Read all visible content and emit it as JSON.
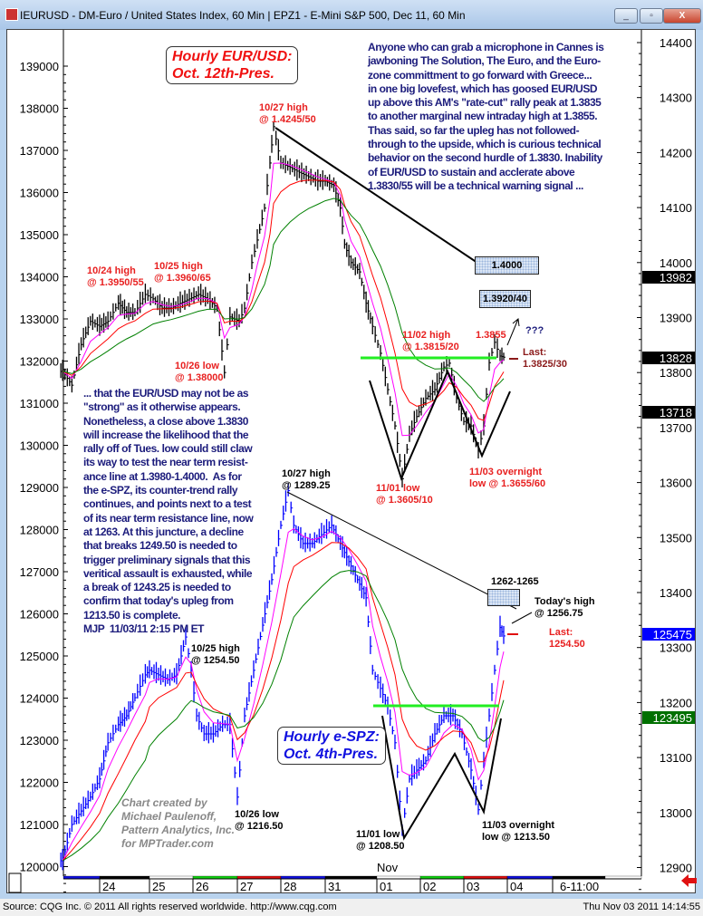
{
  "window": {
    "title": "IEURUSD - DM-Euro / United States Index, 60 Min  |  EPZ1 - E-Mini S&P 500, Dec 11, 60 Min",
    "buttons": {
      "minimize": "_",
      "maximize": "▫",
      "close": "X"
    }
  },
  "status": {
    "source": "Source: CQG Inc. © 2011 All rights reserved worldwide. http://www.cqg.com",
    "datetime": "Thu Nov 03 2011 14:14:55"
  },
  "chart_data": {
    "type": "bar",
    "x_ticks": [
      "24",
      "25",
      "26",
      "27",
      "28",
      "31",
      "01",
      "02",
      "03",
      "04",
      "6-11:00"
    ],
    "month_label": "Nov",
    "left_axis": {
      "ticks": [
        139000,
        138000,
        137000,
        136000,
        135000,
        134000,
        133000,
        132000,
        131000,
        130000,
        129000,
        128000,
        127000,
        126000,
        125000,
        124000,
        123000,
        122000,
        121000,
        120000
      ],
      "range": [
        120000,
        139800
      ]
    },
    "right_axis": {
      "ticks": [
        14400,
        14300,
        14200,
        14100,
        14000,
        13900,
        13800,
        13700,
        13600,
        13500,
        13400,
        13300,
        13200,
        13100,
        13000,
        12900
      ],
      "range": [
        12900,
        14430
      ]
    },
    "price_tags": [
      {
        "value": "13982",
        "color": "#000000"
      },
      {
        "value": "13828",
        "color": "#000000"
      },
      {
        "value": "13718",
        "color": "#000000"
      },
      {
        "value": "125475",
        "color": "#0000ff"
      },
      {
        "value": "123495",
        "color": "#007000"
      }
    ],
    "series": [
      {
        "name": "IEURUSD",
        "axis": "right",
        "color": "#000000",
        "points": [
          [
            "10/23 04:00",
            13802
          ],
          [
            "10/23 09:00",
            13777
          ],
          [
            "10/23 14:00",
            13851
          ],
          [
            "10/23 19:00",
            13893
          ],
          [
            "10/24 00:00",
            13884
          ],
          [
            "10/24 04:00",
            13893
          ],
          [
            "10/24 09:00",
            13926
          ],
          [
            "10/24 13:00",
            13909
          ],
          [
            "10/24 17:00",
            13909
          ],
          [
            "10/24 22:00",
            13942
          ],
          [
            "10/25 02:00",
            13934
          ],
          [
            "10/25 07:00",
            13917
          ],
          [
            "10/25 12:00",
            13917
          ],
          [
            "10/25 17:00",
            13926
          ],
          [
            "10/25 22:00",
            13934
          ],
          [
            "10/26 03:00",
            13942
          ],
          [
            "10/26 08:00",
            13934
          ],
          [
            "10/26 13:00",
            13917
          ],
          [
            "10/26 17:00",
            13800
          ],
          [
            "10/26 20:00",
            13901
          ],
          [
            "10/27 01:00",
            13893
          ],
          [
            "10/27 04:00",
            13917
          ],
          [
            "10/27 08:00",
            14000
          ],
          [
            "10/27 11:00",
            14041
          ],
          [
            "10/27 15:00",
            14099
          ],
          [
            "10/27 18:00",
            14181
          ],
          [
            "10/27 20:00",
            14247
          ],
          [
            "10/28 00:00",
            14181
          ],
          [
            "10/28 05:00",
            14173
          ],
          [
            "10/28 10:00",
            14164
          ],
          [
            "10/28 15:00",
            14156
          ],
          [
            "10/28 20:00",
            14148
          ],
          [
            "10/31 00:00",
            14148
          ],
          [
            "10/31 04:00",
            14140
          ],
          [
            "10/31 07:00",
            14099
          ],
          [
            "10/31 09:00",
            14033
          ],
          [
            "10/31 12:00",
            14000
          ],
          [
            "10/31 16:00",
            13983
          ],
          [
            "10/31 19:00",
            13926
          ],
          [
            "10/31 22:00",
            13884
          ],
          [
            "11/01 02:00",
            13835
          ],
          [
            "11/01 06:00",
            13769
          ],
          [
            "11/01 10:00",
            13703
          ],
          [
            "11/01 14:00",
            13607
          ],
          [
            "11/01 18:00",
            13687
          ],
          [
            "11/01 22:00",
            13720
          ],
          [
            "11/02 03:00",
            13753
          ],
          [
            "11/02 08:00",
            13769
          ],
          [
            "11/02 13:00",
            13810
          ],
          [
            "11/02 16:00",
            13817
          ],
          [
            "11/02 20:00",
            13753
          ],
          [
            "11/03 00:00",
            13711
          ],
          [
            "11/03 04:00",
            13703
          ],
          [
            "11/03 08:00",
            13657
          ],
          [
            "11/03 11:00",
            13703
          ],
          [
            "11/03 14:00",
            13818
          ],
          [
            "11/03 17:00",
            13855
          ],
          [
            "11/03 20:00",
            13830
          ],
          [
            "11/03 22:00",
            13828
          ]
        ]
      },
      {
        "name": "EPZ1",
        "axis": "left",
        "color": "#0000ff",
        "points": [
          [
            "10/23 04:00",
            120140
          ],
          [
            "10/23 09:00",
            121000
          ],
          [
            "10/23 14:00",
            121320
          ],
          [
            "10/23 19:00",
            121650
          ],
          [
            "10/24 00:00",
            122080
          ],
          [
            "10/24 04:00",
            122940
          ],
          [
            "10/24 09:00",
            123370
          ],
          [
            "10/24 13:00",
            123580
          ],
          [
            "10/24 17:00",
            124010
          ],
          [
            "10/24 22:00",
            124550
          ],
          [
            "10/25 00:00",
            124660
          ],
          [
            "10/25 05:00",
            124550
          ],
          [
            "10/25 10:00",
            124440
          ],
          [
            "10/25 15:00",
            124550
          ],
          [
            "10/25 20:00",
            125450
          ],
          [
            "10/25 23:00",
            124660
          ],
          [
            "10/26 02:00",
            123580
          ],
          [
            "10/26 06:00",
            123150
          ],
          [
            "10/26 11:00",
            123150
          ],
          [
            "10/26 16:00",
            123370
          ],
          [
            "10/26 20:00",
            123370
          ],
          [
            "10/27 00:00",
            121650
          ],
          [
            "10/27 04:00",
            123580
          ],
          [
            "10/27 09:00",
            124660
          ],
          [
            "10/27 14:00",
            125730
          ],
          [
            "10/27 19:00",
            126810
          ],
          [
            "10/28 00:00",
            128100
          ],
          [
            "10/28 04:00",
            128925
          ],
          [
            "10/28 07:00",
            128100
          ],
          [
            "10/28 12:00",
            127670
          ],
          [
            "10/28 17:00",
            127670
          ],
          [
            "10/28 22:00",
            127880
          ],
          [
            "10/31 03:00",
            128100
          ],
          [
            "10/31 07:00",
            127670
          ],
          [
            "10/31 11:00",
            127240
          ],
          [
            "10/31 15:00",
            126810
          ],
          [
            "10/31 19:00",
            126380
          ],
          [
            "10/31 22:00",
            124660
          ],
          [
            "11/01 02:00",
            124230
          ],
          [
            "11/01 06:00",
            123800
          ],
          [
            "11/01 10:00",
            122940
          ],
          [
            "11/01 14:00",
            120850
          ],
          [
            "11/01 18:00",
            122080
          ],
          [
            "11/01 22:00",
            122290
          ],
          [
            "11/02 03:00",
            122510
          ],
          [
            "11/02 08:00",
            123150
          ],
          [
            "11/02 13:00",
            123580
          ],
          [
            "11/02 18:00",
            123580
          ],
          [
            "11/02 23:00",
            123150
          ],
          [
            "11/03 04:00",
            122290
          ],
          [
            "11/03 08:00",
            121350
          ],
          [
            "11/03 11:00",
            122510
          ],
          [
            "11/03 14:00",
            123580
          ],
          [
            "11/03 17:00",
            124660
          ],
          [
            "11/03 20:00",
            125675
          ],
          [
            "11/03 22:00",
            125475
          ]
        ]
      }
    ],
    "moving_average_colors": [
      "#ff00ff",
      "#ff0000",
      "#008000"
    ],
    "support_line_color": "#22ee22"
  },
  "annotations": {
    "eur_title": [
      "Hourly EUR/USD:",
      "Oct. 12th-Pres."
    ],
    "spz_title": [
      "Hourly e-SPZ:",
      "Oct. 4th-Pres."
    ],
    "commentary_top": "Anyone who can grab a microphone in Cannes is\njawboning The Solution, The Euro, and the Euro-\nzone committment to go forward with Greece...\nin one big lovefest, which has goosed EUR/USD\nup above this AM's \"rate-cut\" rally peak at 1.3835\nto another marginal new intraday high at 1.3855.\nThas said, so far the upleg has not followed-\nthrough to the upside, which is curious technical\nbehavior on the second hurdle of 1.3830. Inability\nof EUR/USD to sustain and acclerate above\n1.3830/55 will be a technical warning signal ...",
    "commentary_left": "... that the EUR/USD may not be as\n\"strong\" as it otherwise appears.\nNonetheless, a close above 1.3830\nwill increase the likelihood that the\nrally off of Tues. low could still claw\nits way to test the near term resist-\nance line at 1.3980-1.4000.  As for\nthe e-SPZ, its counter-trend rally\ncontinues, and points next to a test\nof its near term resistance line, now\nat 1263. At this juncture, a decline\nthat breaks 1249.50 is needed to\ntrigger preliminary signals that this\nveritical assault is exhausted, while\na break of 1243.25 is needed to\nconfirm that today's upleg from\n1213.50 is complete.\nMJP  11/03/11 2:15 PM ET",
    "eur_labels": {
      "h1027": "10/27 high\n@ 1.4245/50",
      "h1024": "10/24 high\n@ 1.3950/55",
      "h1025": "10/25 high\n@ 1.3960/65",
      "l1026": "10/26 low\n@ 1.38000",
      "h1102": "11/02 high\n@ 1.3815/20",
      "high": "1.3855",
      "question": "???",
      "last": "Last:\n1.3825/30",
      "l1101": "11/01 low\n@ 1.3605/10",
      "l1103": "11/03 overnight\nlow @ 1.3655/60",
      "target1": "1.4000",
      "target2": "1.3920/40"
    },
    "spz_labels": {
      "h1027": "10/27 high\n@ 1289.25",
      "h1025": "10/25 high\n@ 1254.50",
      "l1026": "10/26 low\n@ 1216.50",
      "l1101": "11/01 low\n@ 1208.50",
      "l1103": "11/03 overnight\nlow @ 1213.50",
      "target": "1262-1265",
      "today_high": "Today's high\n@ 1256.75",
      "last": "Last:\n1254.50"
    },
    "credit": "Chart created by\nMichael Paulenoff,\nPattern Analytics, Inc.\nfor MPTrader.com"
  }
}
